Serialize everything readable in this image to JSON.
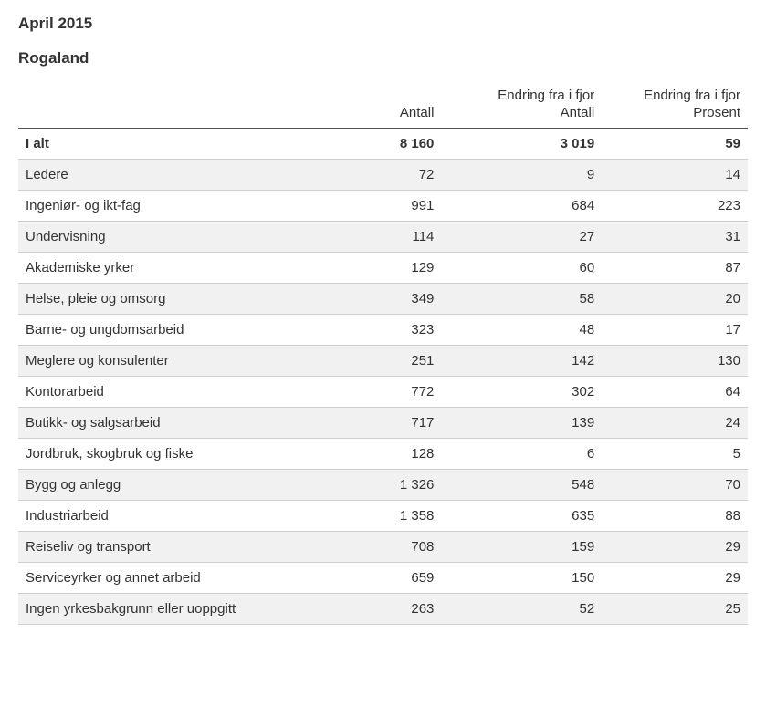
{
  "header": {
    "period": "April 2015",
    "region": "Rogaland"
  },
  "table": {
    "columns": {
      "label": "",
      "count": "Antall",
      "change_count_line1": "Endring fra i fjor",
      "change_count_line2": "Antall",
      "change_pct_line1": "Endring fra i fjor",
      "change_pct_line2": "Prosent"
    },
    "total": {
      "label": "I alt",
      "count": "8 160",
      "change_count": "3 019",
      "change_pct": "59"
    },
    "rows": [
      {
        "label": "Ledere",
        "count": "72",
        "change_count": "9",
        "change_pct": "14"
      },
      {
        "label": "Ingeniør- og ikt-fag",
        "count": "991",
        "change_count": "684",
        "change_pct": "223"
      },
      {
        "label": "Undervisning",
        "count": "114",
        "change_count": "27",
        "change_pct": "31"
      },
      {
        "label": "Akademiske yrker",
        "count": "129",
        "change_count": "60",
        "change_pct": "87"
      },
      {
        "label": "Helse, pleie og omsorg",
        "count": "349",
        "change_count": "58",
        "change_pct": "20"
      },
      {
        "label": "Barne- og ungdomsarbeid",
        "count": "323",
        "change_count": "48",
        "change_pct": "17"
      },
      {
        "label": "Meglere og konsulenter",
        "count": "251",
        "change_count": "142",
        "change_pct": "130"
      },
      {
        "label": "Kontorarbeid",
        "count": "772",
        "change_count": "302",
        "change_pct": "64"
      },
      {
        "label": "Butikk- og salgsarbeid",
        "count": "717",
        "change_count": "139",
        "change_pct": "24"
      },
      {
        "label": "Jordbruk, skogbruk og fiske",
        "count": "128",
        "change_count": "6",
        "change_pct": "5"
      },
      {
        "label": "Bygg og anlegg",
        "count": "1 326",
        "change_count": "548",
        "change_pct": "70"
      },
      {
        "label": "Industriarbeid",
        "count": "1 358",
        "change_count": "635",
        "change_pct": "88"
      },
      {
        "label": "Reiseliv og transport",
        "count": "708",
        "change_count": "159",
        "change_pct": "29"
      },
      {
        "label": "Serviceyrker og annet arbeid",
        "count": "659",
        "change_count": "150",
        "change_pct": "29"
      },
      {
        "label": "Ingen yrkesbakgrunn eller uoppgitt",
        "count": "263",
        "change_count": "52",
        "change_pct": "25"
      }
    ],
    "styling": {
      "font_family": "Arial",
      "base_font_size_pt": 11,
      "heading_font_size_pt": 13,
      "text_color": "#333333",
      "background_color": "#ffffff",
      "row_shade_color": "#f1f1f1",
      "header_border_color": "#555555",
      "row_border_color": "#cfcfcf",
      "column_widths_pct": [
        44,
        14,
        22,
        20
      ],
      "shaded_row_parity": "odd_data_rows_and_total",
      "alignment": {
        "label": "left",
        "count": "right",
        "change_count": "right",
        "change_pct": "right"
      }
    }
  }
}
